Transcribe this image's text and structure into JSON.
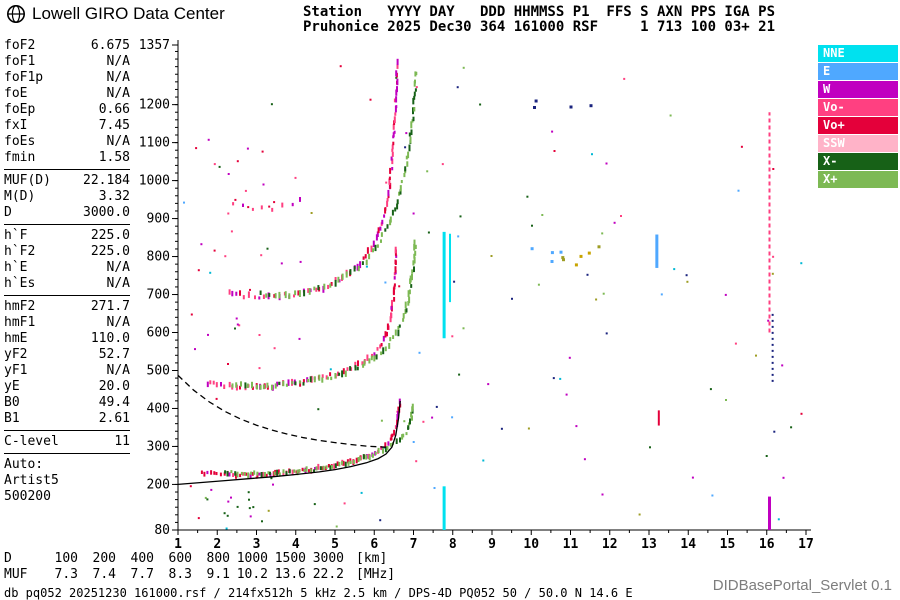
{
  "logo": {
    "text": "Lowell GIRO Data Center"
  },
  "header": {
    "line1": "Station   YYYY DAY   DDD HHMMSS P1  FFS S AXN PPS IGA PS",
    "line2": "Pruhonice 2025 Dec30 364 161000 RSF     1 713 100 03+ 21"
  },
  "parameters": {
    "groups": [
      {
        "rows": [
          [
            "foF2",
            "6.675"
          ],
          [
            "foF1",
            "N/A"
          ],
          [
            "foF1p",
            "N/A"
          ],
          [
            "foE",
            "N/A"
          ],
          [
            "foEp",
            "0.66"
          ],
          [
            "fxI",
            "7.45"
          ],
          [
            "foEs",
            "N/A"
          ],
          [
            "fmin",
            "1.58"
          ]
        ]
      },
      {
        "rows": [
          [
            "MUF(D)",
            "22.184"
          ],
          [
            "M(D)",
            "3.32"
          ],
          [
            "D",
            "3000.0"
          ]
        ]
      },
      {
        "rows": [
          [
            "h`F",
            "225.0"
          ],
          [
            "h`F2",
            "225.0"
          ],
          [
            "h`E",
            "N/A"
          ],
          [
            "h`Es",
            "N/A"
          ]
        ]
      },
      {
        "rows": [
          [
            "hmF2",
            "271.7"
          ],
          [
            "hmF1",
            "N/A"
          ],
          [
            "hmE",
            "110.0"
          ],
          [
            "yF2",
            "52.7"
          ],
          [
            "yF1",
            "N/A"
          ],
          [
            "yE",
            "20.0"
          ],
          [
            "B0",
            "49.4"
          ],
          [
            "B1",
            "2.61"
          ]
        ]
      },
      {
        "rows": [
          [
            "C-level",
            "11"
          ]
        ]
      }
    ],
    "auto_block": [
      "Auto:",
      "Artist5",
      "500200"
    ]
  },
  "legend": [
    {
      "label": "NNE",
      "color": "#00E1EF"
    },
    {
      "label": "E",
      "color": "#4FA8FF"
    },
    {
      "label": "W",
      "color": "#C000C0"
    },
    {
      "label": "Vo-",
      "color": "#FF4081"
    },
    {
      "label": "Vo+",
      "color": "#E4003A"
    },
    {
      "label": "SSW",
      "color": "#FFB3C8"
    },
    {
      "label": "X-",
      "color": "#176117"
    },
    {
      "label": "X+",
      "color": "#7DB954"
    }
  ],
  "chart_data": {
    "type": "scatter",
    "title": "Ionogram Pruhonice 2025 Dec30 161000",
    "xlabel": "[MHz]",
    "ylabel": "[km]",
    "xlim": [
      1,
      17
    ],
    "ylim": [
      80,
      1357
    ],
    "grid": false,
    "legend_position": "right",
    "x_ticks": [
      1,
      2,
      3,
      4,
      5,
      6,
      7,
      8,
      9,
      10,
      11,
      12,
      13,
      14,
      15,
      16,
      17
    ],
    "y_tick_labels": [
      1357,
      1200,
      1100,
      1000,
      900,
      800,
      700,
      600,
      500,
      400,
      300,
      200,
      80
    ],
    "seed": 12,
    "traces": [
      {
        "name": "F2-trace-O-mode-1st-hop",
        "colors": [
          "#E4003A",
          "#E4003A",
          "#E4003A",
          "#FF4081",
          "#C000C0"
        ],
        "w": 2,
        "bar": [
          3,
          6
        ],
        "step": 3,
        "jitter": 1.5,
        "points": [
          [
            1.6,
            230
          ],
          [
            2.0,
            226
          ],
          [
            2.5,
            225
          ],
          [
            3.0,
            226
          ],
          [
            3.5,
            229
          ],
          [
            4.0,
            234
          ],
          [
            4.5,
            241
          ],
          [
            5.0,
            250
          ],
          [
            5.4,
            260
          ],
          [
            5.8,
            273
          ],
          [
            6.1,
            288
          ],
          [
            6.3,
            303
          ],
          [
            6.45,
            322
          ],
          [
            6.55,
            348
          ],
          [
            6.62,
            385
          ],
          [
            6.66,
            425
          ]
        ]
      },
      {
        "name": "F2-trace-X-mode-1st-hop",
        "colors": [
          "#7DB954",
          "#7DB954",
          "#176117"
        ],
        "w": 2,
        "bar": [
          3,
          6
        ],
        "step": 3,
        "jitter": 1.5,
        "points": [
          [
            2.2,
            232
          ],
          [
            2.7,
            228
          ],
          [
            3.2,
            228
          ],
          [
            3.7,
            231
          ],
          [
            4.2,
            236
          ],
          [
            4.7,
            243
          ],
          [
            5.1,
            252
          ],
          [
            5.5,
            262
          ],
          [
            5.9,
            275
          ],
          [
            6.2,
            289
          ],
          [
            6.5,
            306
          ],
          [
            6.7,
            323
          ],
          [
            6.85,
            345
          ],
          [
            6.95,
            375
          ],
          [
            7.0,
            415
          ]
        ]
      },
      {
        "name": "F2-trace-O-mode-2nd-hop",
        "colors": [
          "#FF4081",
          "#C000C0",
          "#E4003A",
          "#FF4081"
        ],
        "w": 2,
        "bar": [
          3,
          7
        ],
        "step": 3.5,
        "jitter": 2,
        "points": [
          [
            1.75,
            468
          ],
          [
            2.1,
            460
          ],
          [
            2.6,
            456
          ],
          [
            3.1,
            457
          ],
          [
            3.6,
            461
          ],
          [
            4.1,
            468
          ],
          [
            4.6,
            478
          ],
          [
            5.0,
            490
          ],
          [
            5.4,
            505
          ],
          [
            5.7,
            522
          ],
          [
            6.0,
            545
          ],
          [
            6.2,
            572
          ],
          [
            6.35,
            610
          ],
          [
            6.45,
            660
          ],
          [
            6.52,
            730
          ],
          [
            6.57,
            830
          ]
        ]
      },
      {
        "name": "F2-trace-X-mode-2nd-hop",
        "colors": [
          "#7DB954",
          "#176117",
          "#7DB954"
        ],
        "w": 2,
        "bar": [
          3,
          7
        ],
        "step": 3.5,
        "jitter": 2,
        "points": [
          [
            2.4,
            462
          ],
          [
            2.9,
            458
          ],
          [
            3.4,
            459
          ],
          [
            3.9,
            464
          ],
          [
            4.4,
            472
          ],
          [
            4.9,
            483
          ],
          [
            5.3,
            496
          ],
          [
            5.7,
            514
          ],
          [
            6.0,
            534
          ],
          [
            6.3,
            560
          ],
          [
            6.55,
            595
          ],
          [
            6.75,
            640
          ],
          [
            6.9,
            700
          ],
          [
            7.0,
            780
          ],
          [
            7.05,
            850
          ]
        ]
      },
      {
        "name": "F2-trace-O-mode-3rd-hop",
        "colors": [
          "#FF4081",
          "#C000C0",
          "#E4003A"
        ],
        "w": 2,
        "bar": [
          3,
          7
        ],
        "step": 4,
        "jitter": 2.5,
        "points": [
          [
            2.3,
            705
          ],
          [
            2.7,
            695
          ],
          [
            3.2,
            692
          ],
          [
            3.7,
            696
          ],
          [
            4.2,
            705
          ],
          [
            4.7,
            720
          ],
          [
            5.1,
            740
          ],
          [
            5.5,
            768
          ],
          [
            5.8,
            800
          ],
          [
            6.05,
            845
          ],
          [
            6.25,
            905
          ],
          [
            6.4,
            990
          ],
          [
            6.5,
            1100
          ],
          [
            6.56,
            1230
          ],
          [
            6.58,
            1320
          ]
        ]
      },
      {
        "name": "F2-trace-X-mode-3rd-hop",
        "colors": [
          "#7DB954",
          "#176117"
        ],
        "w": 2,
        "bar": [
          3,
          7
        ],
        "step": 4.5,
        "jitter": 2.5,
        "points": [
          [
            3.1,
            700
          ],
          [
            3.6,
            698
          ],
          [
            4.1,
            704
          ],
          [
            4.6,
            716
          ],
          [
            5.0,
            732
          ],
          [
            5.4,
            756
          ],
          [
            5.8,
            790
          ],
          [
            6.1,
            830
          ],
          [
            6.4,
            890
          ],
          [
            6.65,
            960
          ],
          [
            6.85,
            1060
          ],
          [
            7.0,
            1180
          ],
          [
            7.08,
            1300
          ]
        ]
      },
      {
        "name": "F2-trace-4th-hop",
        "colors": [
          "#C000C0",
          "#FF4081"
        ],
        "w": 2,
        "bar": [
          3,
          5
        ],
        "step": 7,
        "jitter": 2,
        "points": [
          [
            2.4,
            935
          ],
          [
            2.9,
            925
          ],
          [
            3.4,
            928
          ],
          [
            3.9,
            940
          ],
          [
            4.3,
            958
          ]
        ]
      }
    ],
    "profile_lines": [
      {
        "name": "artist-true-height-profile",
        "style": "solid",
        "points": [
          [
            1.0,
            200
          ],
          [
            1.6,
            205
          ],
          [
            2.2,
            210
          ],
          [
            2.8,
            215
          ],
          [
            3.4,
            220
          ],
          [
            4.0,
            226
          ],
          [
            4.6,
            233
          ],
          [
            5.0,
            239
          ],
          [
            5.4,
            247
          ],
          [
            5.8,
            257
          ],
          [
            6.1,
            268
          ],
          [
            6.3,
            280
          ],
          [
            6.45,
            298
          ],
          [
            6.55,
            330
          ],
          [
            6.62,
            375
          ],
          [
            6.66,
            420
          ]
        ]
      },
      {
        "name": "extrapolated-curve",
        "style": "dashed",
        "points": [
          [
            1.0,
            487
          ],
          [
            1.4,
            448
          ],
          [
            1.8,
            417
          ],
          [
            2.2,
            392
          ],
          [
            2.6,
            372
          ],
          [
            3.0,
            356
          ],
          [
            3.4,
            343
          ],
          [
            3.8,
            332
          ],
          [
            4.2,
            323
          ],
          [
            4.6,
            316
          ],
          [
            5.0,
            310
          ],
          [
            5.4,
            305
          ],
          [
            5.8,
            301
          ],
          [
            6.1,
            299
          ],
          [
            6.3,
            298
          ]
        ]
      }
    ],
    "rfi_lines": [
      {
        "f": 7.78,
        "h1": 585,
        "h2": 865,
        "color": "#00E1EF",
        "w": 3
      },
      {
        "f": 7.78,
        "h1": 80,
        "h2": 195,
        "color": "#00E1EF",
        "w": 3
      },
      {
        "f": 7.93,
        "h1": 680,
        "h2": 860,
        "color": "#00E1EF",
        "w": 2
      },
      {
        "f": 13.2,
        "h1": 770,
        "h2": 858,
        "color": "#4FA8FF",
        "w": 3
      },
      {
        "f": 13.25,
        "h1": 355,
        "h2": 395,
        "color": "#E4003A",
        "w": 2
      },
      {
        "f": 16.07,
        "h1": 600,
        "h2": 1180,
        "color": "#FF4081",
        "w": 2,
        "dash": "4,3"
      },
      {
        "f": 16.07,
        "h1": 80,
        "h2": 168,
        "color": "#C000C0",
        "w": 3
      },
      {
        "f": 16.15,
        "h1": 470,
        "h2": 655,
        "color": "#1A237E",
        "w": 2,
        "dash": "2,4"
      }
    ],
    "noise": [
      {
        "count": 120,
        "f": [
          1.1,
          16.9
        ],
        "h": [
          85,
          1345
        ],
        "size": 2,
        "colors": [
          "#176117",
          "#7DB954",
          "#E4003A",
          "#FF4081",
          "#C000C0",
          "#00B8D4",
          "#4FA8FF",
          "#1A237E",
          "#9E9D24"
        ]
      },
      {
        "count": 28,
        "f": [
          1.3,
          4.2
        ],
        "h": [
          500,
          1120
        ],
        "size": 2,
        "colors": [
          "#FF4081",
          "#C000C0",
          "#E4003A"
        ]
      },
      {
        "count": 10,
        "f": [
          9.9,
          11.8
        ],
        "h": [
          760,
          835
        ],
        "size": 3,
        "colors": [
          "#9E9D24",
          "#C8A400",
          "#4FA8FF"
        ]
      },
      {
        "count": 16,
        "f": [
          1.2,
          3.4
        ],
        "h": [
          95,
          205
        ],
        "size": 2,
        "colors": [
          "#E4003A",
          "#176117",
          "#C000C0"
        ]
      },
      {
        "count": 4,
        "f": [
          10.0,
          11.6
        ],
        "h": [
          1190,
          1220
        ],
        "size": 3,
        "colors": [
          "#1A237E"
        ]
      }
    ]
  },
  "distance_table": {
    "d_label": "D",
    "d_values": [
      "100",
      "200",
      "400",
      "600",
      "800",
      "1000",
      "1500",
      "3000"
    ],
    "d_unit": "[km]",
    "muf_label": "MUF",
    "muf_values": [
      "7.3",
      "7.4",
      "7.7",
      "8.3",
      "9.1",
      "10.2",
      "13.6",
      "22.2"
    ],
    "muf_unit": "[MHz]"
  },
  "footer": {
    "status": "db pq052 20251230 161000.rsf / 214fx512h 5 kHz 2.5 km / DPS-4D PQ052 50 / 50.0 N 14.6 E",
    "servlet": "DIDBasePortal_Servlet 0.1"
  }
}
